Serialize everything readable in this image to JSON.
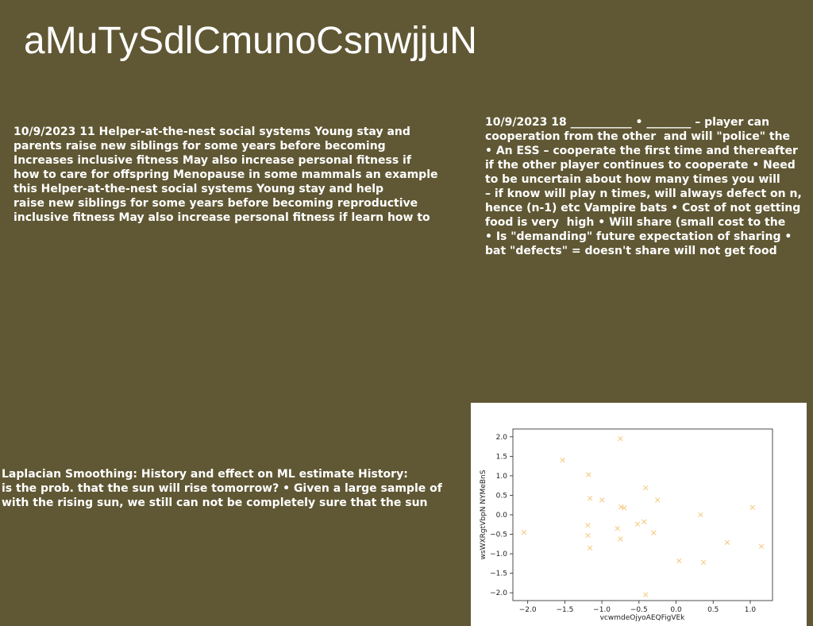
{
  "title": "aMuTySdlCmunoCsnwjjuN",
  "text_blocks": {
    "block1": "10/9/2023 11 Helper-at-the-nest social systems Young stay and\nparents raise new siblings for some years before becoming\nIncreases inclusive fitness May also increase personal fitness if\nhow to care for offspring Menopause in some mammals an example\nthis Helper-at-the-nest social systems Young stay and help\nraise new siblings for some years before becoming reproductive\ninclusive fitness May also increase personal fitness if learn how to",
    "block2": "10/9/2023 18 ___________ • ________ – player can\ncooperation from the other  and will \"police\" the\n• An ESS – cooperate the first time and thereafter\nif the other player continues to cooperate • Need\nto be uncertain about how many times you will\n– if know will play n times, will always defect on n,\nhence (n-1) etc Vampire bats • Cost of not getting\nfood is very  high • Will share (small cost to the\n• Is \"demanding\" future expectation of sharing •\nbat \"defects\" = doesn't share will not get food",
    "block3": "Laplacian Smoothing: History and effect on ML estimate History:\nis the prob. that the sun will rise tomorrow? • Given a large sample of\nwith the rising sun, we still can not be completely sure that the sun"
  },
  "chart_data": {
    "type": "scatter",
    "title": "",
    "xlabel": "vcwmdeOjyoAEQFigVEk",
    "ylabel": "wsWXRgtVbpN NYMeBnS",
    "xlim": [
      -2.2,
      1.3
    ],
    "ylim": [
      -2.2,
      2.2
    ],
    "xticks": [
      -2.0,
      -1.5,
      -1.0,
      -0.5,
      0.0,
      0.5,
      1.0
    ],
    "xtick_labels": [
      "−2.0",
      "−1.5",
      "−1.0",
      "−0.5",
      "0.0",
      "0.5",
      "1.0"
    ],
    "yticks": [
      2.0,
      1.5,
      1.0,
      0.5,
      0.0,
      -0.5,
      -1.0,
      -1.5,
      -2.0
    ],
    "ytick_labels": [
      "2.0",
      "1.5",
      "1.0",
      "0.5",
      "0.0",
      "−0.5",
      "−1.0",
      "−1.5",
      "−2.0"
    ],
    "marker": "x",
    "color": "#f5c77e",
    "grid": false,
    "points": [
      {
        "x": -2.05,
        "y": -0.45
      },
      {
        "x": -1.53,
        "y": 1.4
      },
      {
        "x": -1.18,
        "y": 1.03
      },
      {
        "x": -1.16,
        "y": 0.42
      },
      {
        "x": -1.0,
        "y": 0.38
      },
      {
        "x": -1.19,
        "y": -0.27
      },
      {
        "x": -1.19,
        "y": -0.53
      },
      {
        "x": -1.16,
        "y": -0.85
      },
      {
        "x": -0.75,
        "y": 1.95
      },
      {
        "x": -0.74,
        "y": 0.2
      },
      {
        "x": -0.7,
        "y": 0.18
      },
      {
        "x": -0.79,
        "y": -0.35
      },
      {
        "x": -0.75,
        "y": -0.62
      },
      {
        "x": -0.52,
        "y": -0.24
      },
      {
        "x": -0.43,
        "y": -0.18
      },
      {
        "x": -0.41,
        "y": 0.69
      },
      {
        "x": -0.25,
        "y": 0.38
      },
      {
        "x": -0.3,
        "y": -0.46
      },
      {
        "x": -0.41,
        "y": -2.05
      },
      {
        "x": 0.04,
        "y": -1.18
      },
      {
        "x": 0.33,
        "y": 0.0
      },
      {
        "x": 0.37,
        "y": -1.22
      },
      {
        "x": 0.69,
        "y": -0.71
      },
      {
        "x": 1.03,
        "y": 0.19
      },
      {
        "x": 1.15,
        "y": -0.81
      }
    ]
  }
}
